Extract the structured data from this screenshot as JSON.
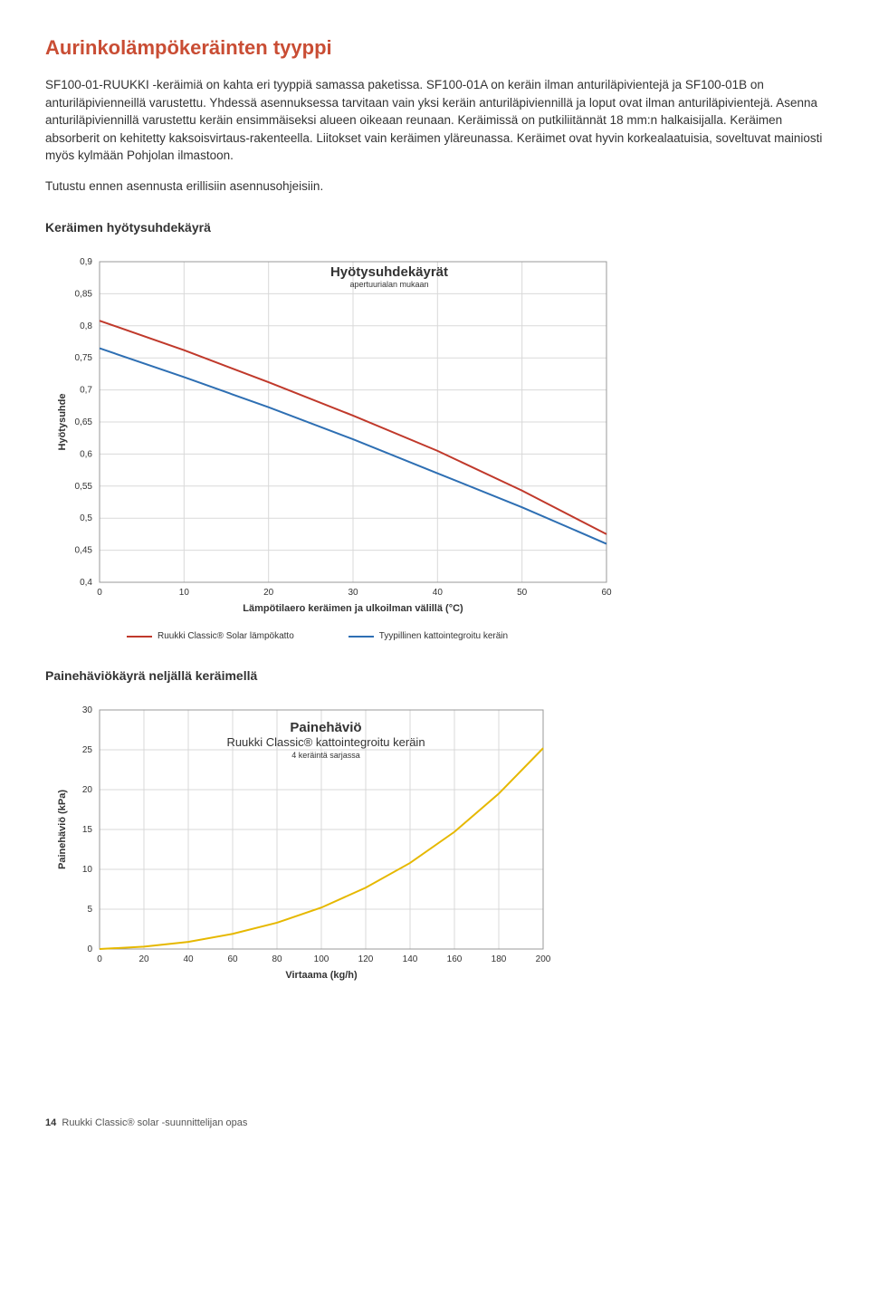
{
  "heading": "Aurinkolämpökeräinten tyyppi",
  "paragraph1": "SF100-01-RUUKKI -keräimiä on kahta eri tyyppiä samassa paketissa. SF100-01A on keräin ilman anturiläpivientejä ja SF100-01B on anturiläpivienneillä varustettu. Yhdessä asennuksessa tarvitaan vain yksi keräin anturiläpiviennillä ja loput ovat ilman anturiläpivientejä. Asenna anturiläpiviennillä varustettu keräin ensimmäiseksi alueen oikeaan reunaan. Keräimissä on putkiliitännät 18 mm:n halkaisijalla. Keräimen absorberit on kehitetty kaksoisvirtaus-rakenteella. Liitokset vain keräimen yläreunassa. Keräimet ovat hyvin korkealaatuisia, soveltuvat mainiosti myös kylmään Pohjolan ilmastoon.",
  "paragraph2": "Tutustu ennen asennusta erillisiin asennusohjeisiin.",
  "chart1_heading": "Keräimen hyötysuhdekäyrä",
  "chart2_heading": "Painehäviökäyrä neljällä keräimellä",
  "footer_page": "14",
  "footer_text": "Ruukki Classic® solar -suunnittelijan opas",
  "chart1": {
    "type": "line",
    "title": "Hyötysuhdekäyrät",
    "subtitle": "apertuurialan mukaan",
    "xlabel": "Lämpötilaero keräimen ja ulkoilman välillä (°C)",
    "ylabel": "Hyötysuhde",
    "ylim": [
      0.4,
      0.9
    ],
    "yticks": [
      0.4,
      0.45,
      0.5,
      0.55,
      0.6,
      0.65,
      0.7,
      0.75,
      0.8,
      0.85,
      0.9
    ],
    "xlim": [
      0,
      60
    ],
    "xticks": [
      0,
      10,
      20,
      30,
      40,
      50,
      60
    ],
    "grid_color": "#d9d9d9",
    "background_color": "#ffffff",
    "series": [
      {
        "name": "Ruukki Classic® Solar lämpökatto",
        "color": "#c0392b",
        "width": 2,
        "points": [
          [
            0,
            0.808
          ],
          [
            10,
            0.762
          ],
          [
            20,
            0.712
          ],
          [
            30,
            0.66
          ],
          [
            40,
            0.605
          ],
          [
            50,
            0.543
          ],
          [
            60,
            0.475
          ]
        ]
      },
      {
        "name": "Tyypillinen kattointegroitu keräin",
        "color": "#2e6fb3",
        "width": 2,
        "points": [
          [
            0,
            0.765
          ],
          [
            10,
            0.72
          ],
          [
            20,
            0.673
          ],
          [
            30,
            0.623
          ],
          [
            40,
            0.57
          ],
          [
            50,
            0.517
          ],
          [
            60,
            0.46
          ]
        ]
      }
    ],
    "label_fontsize": 11,
    "tick_fontsize": 10,
    "title_fontsize": 15,
    "legend_fontsize": 10
  },
  "chart2": {
    "type": "line",
    "title": "Painehäviö",
    "subtitle_line1": "Ruukki Classic® kattointegroitu keräin",
    "subtitle_line2": "4 keräintä sarjassa",
    "xlabel": "Virtaama (kg/h)",
    "ylabel": "Painehäviö (kPa)",
    "ylim": [
      0,
      30
    ],
    "yticks": [
      0,
      5,
      10,
      15,
      20,
      25,
      30
    ],
    "xlim": [
      0,
      200
    ],
    "xticks": [
      0,
      20,
      40,
      60,
      80,
      100,
      120,
      140,
      160,
      180,
      200
    ],
    "grid_color": "#d9d9d9",
    "background_color": "#ffffff",
    "series": [
      {
        "name": "Painehäviö",
        "color": "#e6b800",
        "width": 2,
        "points": [
          [
            0,
            0
          ],
          [
            20,
            0.3
          ],
          [
            40,
            0.9
          ],
          [
            60,
            1.9
          ],
          [
            80,
            3.3
          ],
          [
            100,
            5.2
          ],
          [
            120,
            7.7
          ],
          [
            140,
            10.8
          ],
          [
            160,
            14.7
          ],
          [
            180,
            19.5
          ],
          [
            200,
            25.2
          ]
        ]
      }
    ],
    "label_fontsize": 11,
    "tick_fontsize": 10,
    "title_fontsize": 15
  }
}
